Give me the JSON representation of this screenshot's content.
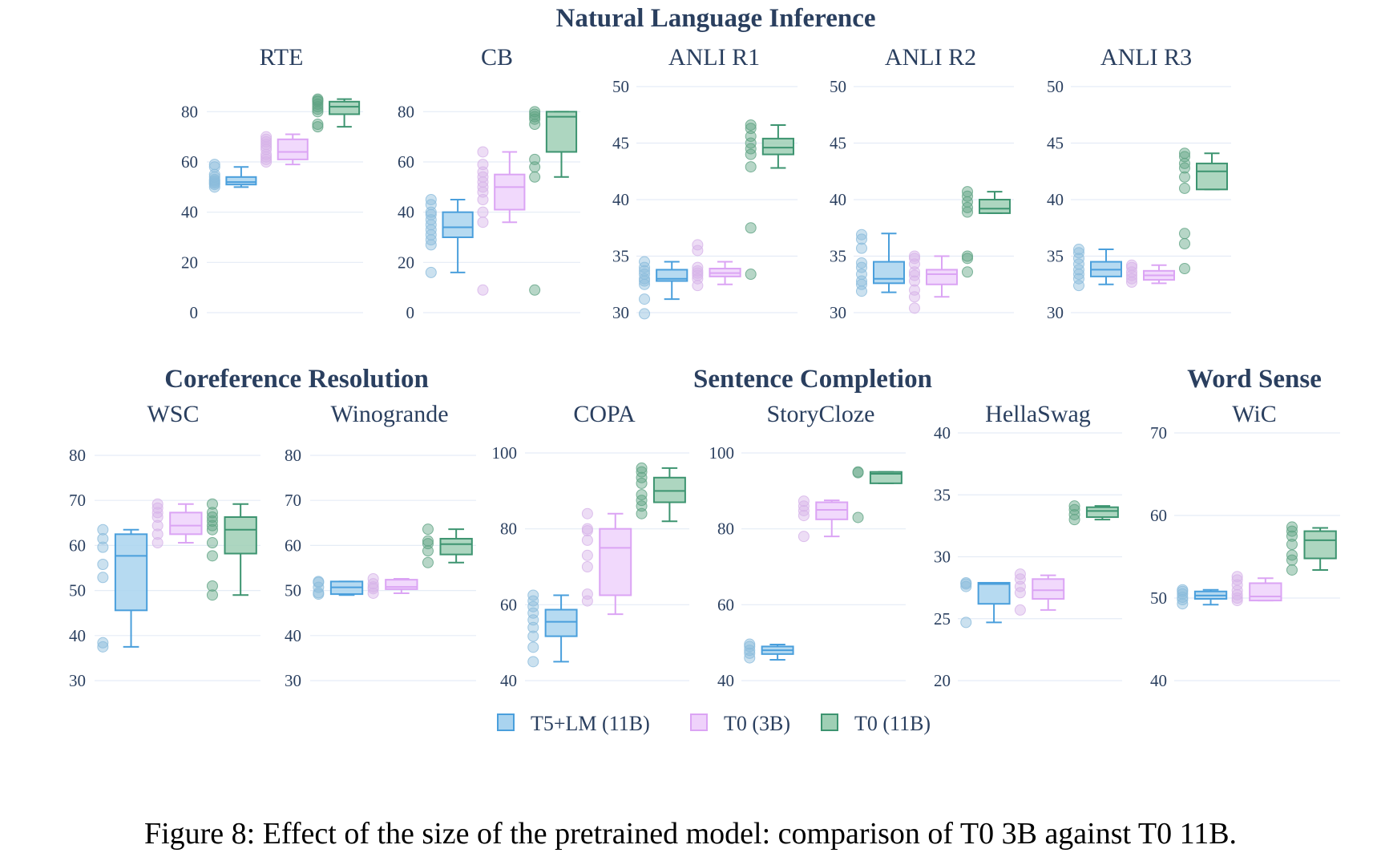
{
  "figure": {
    "caption": "Figure 8: Effect of the size of the pretrained model: comparison of T0 3B against T0 11B."
  },
  "groups": [
    {
      "label": "Natural Language Inference"
    },
    {
      "label": "Coreference Resolution"
    },
    {
      "label": "Sentence Completion"
    },
    {
      "label": "Word Sense"
    }
  ],
  "colors": {
    "T5+LM (11B)": {
      "fill": "#a9d3ef",
      "line": "#4a9fdc",
      "point": "#8bbcdc"
    },
    "T0 (3B)": {
      "fill": "#efd2fb",
      "line": "#dba4f4",
      "point": "#d6b3e8"
    },
    "T0 (11B)": {
      "fill": "#9fcfb5",
      "line": "#3d9470",
      "point": "#5fa383"
    },
    "grid": "#e5ecf6",
    "text": "#2a3f5f"
  },
  "chart_data": [
    {
      "type": "box",
      "title": "RTE",
      "group": "Natural Language Inference",
      "ylim": [
        0,
        90
      ],
      "yticks": [
        0,
        20,
        40,
        60,
        80
      ],
      "ytick_labels": [
        "0",
        "20",
        "40",
        "60",
        "80"
      ],
      "series": [
        {
          "name": "T5+LM (11B)",
          "q1": 51,
          "median": 52,
          "q3": 54,
          "whisker_low": 50,
          "whisker_high": 58,
          "points": [
            50,
            51,
            51.5,
            52,
            52.5,
            53,
            54,
            55,
            58,
            59
          ]
        },
        {
          "name": "T0 (3B)",
          "q1": 61,
          "median": 64,
          "q3": 69,
          "whisker_low": 59,
          "whisker_high": 71,
          "points": [
            60,
            61,
            62,
            63,
            65,
            66,
            67,
            68,
            69,
            70
          ]
        },
        {
          "name": "T0 (11B)",
          "q1": 79,
          "median": 82,
          "q3": 84,
          "whisker_low": 74,
          "whisker_high": 85,
          "points": [
            74,
            75,
            80,
            81,
            82,
            83,
            84,
            84.5,
            85
          ]
        }
      ]
    },
    {
      "type": "box",
      "title": "CB",
      "group": "Natural Language Inference",
      "ylim": [
        0,
        90
      ],
      "yticks": [
        0,
        20,
        40,
        60,
        80
      ],
      "ytick_labels": [
        "0",
        "20",
        "40",
        "60",
        "80"
      ],
      "series": [
        {
          "name": "T5+LM (11B)",
          "q1": 30,
          "median": 34,
          "q3": 40,
          "whisker_low": 16,
          "whisker_high": 45,
          "points": [
            16,
            27,
            29,
            31,
            33,
            35,
            37,
            39,
            40,
            43,
            45
          ]
        },
        {
          "name": "T0 (3B)",
          "q1": 41,
          "median": 50,
          "q3": 55,
          "whisker_low": 36,
          "whisker_high": 64,
          "points": [
            9,
            36,
            40,
            45,
            48,
            50,
            52,
            54,
            56,
            59,
            64
          ]
        },
        {
          "name": "T0 (11B)",
          "q1": 64,
          "median": 78,
          "q3": 80,
          "whisker_low": 54,
          "whisker_high": 80,
          "points": [
            9,
            54,
            58,
            61,
            75,
            77,
            78,
            79,
            80
          ]
        }
      ]
    },
    {
      "type": "box",
      "title": "ANLI R1",
      "group": "Natural Language Inference",
      "ylim": [
        30,
        50
      ],
      "yticks": [
        30,
        35,
        40,
        45,
        50
      ],
      "ytick_labels": [
        "30",
        "35",
        "40",
        "45",
        "50"
      ],
      "series": [
        {
          "name": "T5+LM (11B)",
          "q1": 32.8,
          "median": 33.0,
          "q3": 33.8,
          "whisker_low": 31.2,
          "whisker_high": 34.5,
          "points": [
            29.9,
            31.2,
            32.5,
            32.8,
            33.0,
            33.4,
            33.7,
            34.0,
            34.5
          ]
        },
        {
          "name": "T0 (3B)",
          "q1": 33.2,
          "median": 33.5,
          "q3": 33.9,
          "whisker_low": 32.5,
          "whisker_high": 34.5,
          "points": [
            32.4,
            33.0,
            33.3,
            33.5,
            33.7,
            34.0,
            35.5,
            36.0
          ]
        },
        {
          "name": "T0 (11B)",
          "q1": 44.0,
          "median": 44.6,
          "q3": 45.4,
          "whisker_low": 42.8,
          "whisker_high": 46.6,
          "points": [
            33.4,
            37.5,
            42.9,
            44.0,
            44.5,
            45.0,
            45.6,
            46.3,
            46.6
          ]
        }
      ]
    },
    {
      "type": "box",
      "title": "ANLI R2",
      "group": "Natural Language Inference",
      "ylim": [
        30,
        50
      ],
      "yticks": [
        30,
        35,
        40,
        45,
        50
      ],
      "ytick_labels": [
        "30",
        "35",
        "40",
        "45",
        "50"
      ],
      "series": [
        {
          "name": "T5+LM (11B)",
          "q1": 32.6,
          "median": 33.0,
          "q3": 34.5,
          "whisker_low": 31.8,
          "whisker_high": 37.0,
          "points": [
            31.9,
            32.5,
            32.8,
            33.4,
            34.0,
            34.4,
            35.7,
            36.5,
            36.9
          ]
        },
        {
          "name": "T0 (3B)",
          "q1": 32.5,
          "median": 33.4,
          "q3": 33.8,
          "whisker_low": 31.4,
          "whisker_high": 35.0,
          "points": [
            30.4,
            31.4,
            32.0,
            32.8,
            33.3,
            33.6,
            34.3,
            34.8,
            35.0
          ]
        },
        {
          "name": "T0 (11B)",
          "q1": 38.8,
          "median": 39.2,
          "q3": 40.0,
          "whisker_low": 38.8,
          "whisker_high": 40.7,
          "points": [
            33.6,
            34.8,
            35.0,
            38.9,
            39.3,
            39.8,
            40.3,
            40.7
          ]
        }
      ]
    },
    {
      "type": "box",
      "title": "ANLI R3",
      "group": "Natural Language Inference",
      "ylim": [
        30,
        50
      ],
      "yticks": [
        30,
        35,
        40,
        45,
        50
      ],
      "ytick_labels": [
        "30",
        "35",
        "40",
        "45",
        "50"
      ],
      "series": [
        {
          "name": "T5+LM (11B)",
          "q1": 33.2,
          "median": 33.8,
          "q3": 34.5,
          "whisker_low": 32.5,
          "whisker_high": 35.6,
          "points": [
            32.4,
            33.0,
            33.4,
            33.8,
            34.3,
            34.8,
            35.3,
            35.6
          ]
        },
        {
          "name": "T0 (3B)",
          "q1": 32.9,
          "median": 33.3,
          "q3": 33.7,
          "whisker_low": 32.6,
          "whisker_high": 34.2,
          "points": [
            32.7,
            33.0,
            33.3,
            33.6,
            34.0,
            34.2
          ]
        },
        {
          "name": "T0 (11B)",
          "q1": 40.9,
          "median": 42.5,
          "q3": 43.2,
          "whisker_low": 40.9,
          "whisker_high": 44.1,
          "points": [
            33.9,
            36.1,
            37.0,
            41.0,
            42.0,
            42.8,
            43.2,
            43.8,
            44.1
          ]
        }
      ]
    },
    {
      "type": "box",
      "title": "WSC",
      "group": "Coreference Resolution",
      "ylim": [
        30,
        80
      ],
      "yticks": [
        30,
        40,
        50,
        60,
        70,
        80
      ],
      "ytick_labels": [
        "30",
        "40",
        "50",
        "60",
        "70",
        "80"
      ],
      "series": [
        {
          "name": "T5+LM (11B)",
          "q1": 45.6,
          "median": 57.7,
          "q3": 62.5,
          "whisker_low": 37.5,
          "whisker_high": 63.5,
          "points": [
            37.5,
            38.4,
            52.9,
            55.8,
            59.6,
            61.5,
            63.5
          ]
        },
        {
          "name": "T0 (3B)",
          "q1": 62.5,
          "median": 64.4,
          "q3": 67.3,
          "whisker_low": 60.6,
          "whisker_high": 69.2,
          "points": [
            60.6,
            62.5,
            64.4,
            66.3,
            67.3,
            68.3,
            69.2
          ]
        },
        {
          "name": "T0 (11B)",
          "q1": 58.2,
          "median": 63.5,
          "q3": 66.3,
          "whisker_low": 49.0,
          "whisker_high": 69.2,
          "points": [
            49.0,
            51.0,
            57.7,
            60.6,
            63.5,
            64.4,
            65.4,
            66.3,
            67.3,
            69.2
          ]
        }
      ]
    },
    {
      "type": "box",
      "title": "Winogrande",
      "group": "Coreference Resolution",
      "ylim": [
        30,
        80
      ],
      "yticks": [
        30,
        40,
        50,
        60,
        70,
        80
      ],
      "ytick_labels": [
        "30",
        "40",
        "50",
        "60",
        "70",
        "80"
      ],
      "series": [
        {
          "name": "T5+LM (11B)",
          "q1": 49.2,
          "median": 50.7,
          "q3": 52.0,
          "whisker_low": 49.0,
          "whisker_high": 52.0,
          "points": [
            49.2,
            49.5,
            50.7,
            51.8,
            52.0
          ]
        },
        {
          "name": "T0 (3B)",
          "q1": 50.3,
          "median": 50.8,
          "q3": 52.4,
          "whisker_low": 49.4,
          "whisker_high": 52.6,
          "points": [
            49.4,
            50.4,
            50.8,
            51.5,
            52.6
          ]
        },
        {
          "name": "T0 (11B)",
          "q1": 58.0,
          "median": 60.3,
          "q3": 61.5,
          "whisker_low": 56.2,
          "whisker_high": 63.6,
          "points": [
            56.2,
            58.8,
            60.4,
            61.0,
            63.6
          ]
        }
      ]
    },
    {
      "type": "box",
      "title": "COPA",
      "group": "Sentence Completion",
      "ylim": [
        40,
        100
      ],
      "yticks": [
        40,
        60,
        80,
        100
      ],
      "ytick_labels": [
        "40",
        "60",
        "80",
        "100"
      ],
      "series": [
        {
          "name": "T5+LM (11B)",
          "q1": 51.7,
          "median": 55.5,
          "q3": 58.7,
          "whisker_low": 45.0,
          "whisker_high": 62.5,
          "points": [
            45.0,
            48.8,
            51.7,
            54.0,
            56.0,
            57.8,
            59.5,
            61.0,
            62.5
          ]
        },
        {
          "name": "T0 (3B)",
          "q1": 62.5,
          "median": 75.0,
          "q3": 80.0,
          "whisker_low": 57.5,
          "whisker_high": 84.0,
          "points": [
            61.0,
            62.8,
            70.0,
            73.0,
            77.0,
            79.5,
            80.0,
            84.0
          ]
        },
        {
          "name": "T0 (11B)",
          "q1": 87.0,
          "median": 90.0,
          "q3": 93.5,
          "whisker_low": 82.0,
          "whisker_high": 96.0,
          "points": [
            84.0,
            86.0,
            87.5,
            89.0,
            92.0,
            93.5,
            95.0,
            96.0
          ]
        }
      ]
    },
    {
      "type": "box",
      "title": "StoryCloze",
      "group": "Sentence Completion",
      "ylim": [
        40,
        100
      ],
      "yticks": [
        40,
        60,
        80,
        100
      ],
      "ytick_labels": [
        "40",
        "60",
        "80",
        "100"
      ],
      "series": [
        {
          "name": "T5+LM (11B)",
          "q1": 47.0,
          "median": 48.0,
          "q3": 49.0,
          "whisker_low": 45.5,
          "whisker_high": 49.5,
          "points": [
            46.0,
            47.2,
            48.0,
            49.0,
            49.6
          ]
        },
        {
          "name": "T0 (3B)",
          "q1": 82.5,
          "median": 85.0,
          "q3": 87.0,
          "whisker_low": 78.0,
          "whisker_high": 87.5,
          "points": [
            78.0,
            83.5,
            84.8,
            86.0,
            87.3
          ]
        },
        {
          "name": "T0 (11B)",
          "q1": 92.0,
          "median": 94.5,
          "q3": 95.0,
          "whisker_low": 92.0,
          "whisker_high": 95.0,
          "points": [
            83.0,
            94.8,
            95.0
          ]
        }
      ]
    },
    {
      "type": "box",
      "title": "HellaSwag",
      "group": "Sentence Completion",
      "ylim": [
        20,
        40
      ],
      "yticks": [
        20,
        25,
        30,
        35,
        40
      ],
      "ytick_labels": [
        "20",
        "25",
        "30",
        "35",
        "40"
      ],
      "series": [
        {
          "name": "T5+LM (11B)",
          "q1": 26.2,
          "median": 27.8,
          "q3": 27.9,
          "whisker_low": 24.7,
          "whisker_high": 27.9,
          "points": [
            24.7,
            27.6,
            27.8,
            27.9
          ]
        },
        {
          "name": "T0 (3B)",
          "q1": 26.6,
          "median": 27.3,
          "q3": 28.2,
          "whisker_low": 25.7,
          "whisker_high": 28.5,
          "points": [
            25.7,
            27.1,
            27.6,
            28.2,
            28.6
          ]
        },
        {
          "name": "T0 (11B)",
          "q1": 33.2,
          "median": 33.7,
          "q3": 34.0,
          "whisker_low": 33.0,
          "whisker_high": 34.1,
          "points": [
            33.0,
            33.4,
            33.8,
            34.1
          ]
        }
      ]
    },
    {
      "type": "box",
      "title": "WiC",
      "group": "Word Sense",
      "ylim": [
        40,
        70
      ],
      "yticks": [
        40,
        50,
        60,
        70
      ],
      "ytick_labels": [
        "40",
        "50",
        "60",
        "70"
      ],
      "series": [
        {
          "name": "T5+LM (11B)",
          "q1": 49.9,
          "median": 50.3,
          "q3": 50.8,
          "whisker_low": 49.2,
          "whisker_high": 51.0,
          "points": [
            49.3,
            49.8,
            50.1,
            50.5,
            50.8,
            51.0
          ]
        },
        {
          "name": "T0 (3B)",
          "q1": 49.7,
          "median": 50.2,
          "q3": 51.8,
          "whisker_low": 49.7,
          "whisker_high": 52.4,
          "points": [
            49.7,
            50.0,
            50.4,
            50.9,
            51.6,
            52.2,
            52.6
          ]
        },
        {
          "name": "T0 (11B)",
          "q1": 54.8,
          "median": 57.0,
          "q3": 58.1,
          "whisker_low": 53.4,
          "whisker_high": 58.5,
          "points": [
            53.4,
            54.6,
            55.2,
            56.5,
            57.5,
            58.1,
            58.6
          ]
        }
      ]
    }
  ],
  "legend": {
    "position": "bottom-center",
    "items": [
      {
        "label": "T5+LM (11B)"
      },
      {
        "label": "T0 (3B)"
      },
      {
        "label": "T0 (11B)"
      }
    ]
  }
}
